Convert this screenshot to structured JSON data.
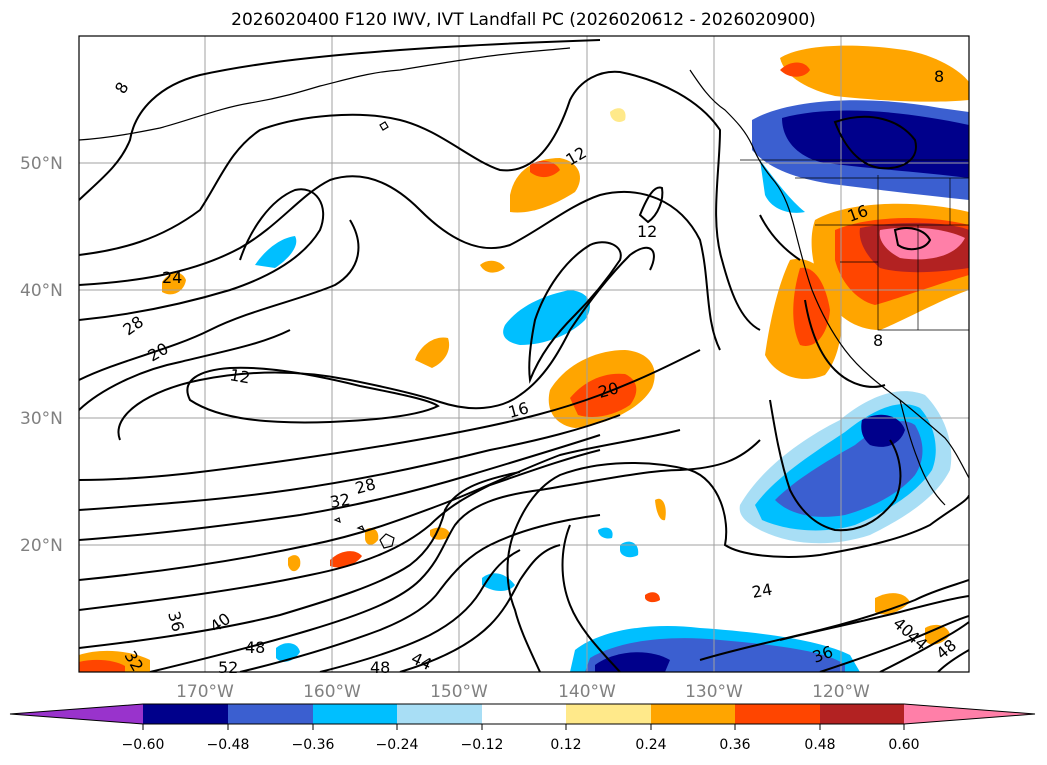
{
  "title": "2026020400 F120 IWV, IVT Landfall PC (2026020612 - 2026020900)",
  "latitude_labels": [
    "50°N",
    "40°N",
    "30°N",
    "20°N"
  ],
  "longitude_labels": [
    "170°W",
    "160°W",
    "150°W",
    "140°W",
    "130°W",
    "120°W"
  ],
  "colorbar": {
    "tick_labels": [
      "−0.60",
      "−0.48",
      "−0.36",
      "−0.24",
      "−0.12",
      "0.12",
      "0.24",
      "0.36",
      "0.48",
      "0.60"
    ],
    "colors": [
      "#9933cc",
      "#00008b",
      "#3b5fd0",
      "#00bfff",
      "#a8def5",
      "#ffffff",
      "#ffe98a",
      "#ffa500",
      "#ff4500",
      "#b22222",
      "#ff7fa8"
    ]
  },
  "contour_labels": [
    "8",
    "8",
    "8",
    "12",
    "12",
    "12",
    "16",
    "16",
    "20",
    "20",
    "24",
    "24",
    "28",
    "28",
    "32",
    "32",
    "36",
    "36",
    "40",
    "40",
    "44",
    "44",
    "48",
    "48",
    "48",
    "52"
  ],
  "colors": {
    "contour": "#000000",
    "grid": "#a0a0a0",
    "frame": "#000000"
  }
}
